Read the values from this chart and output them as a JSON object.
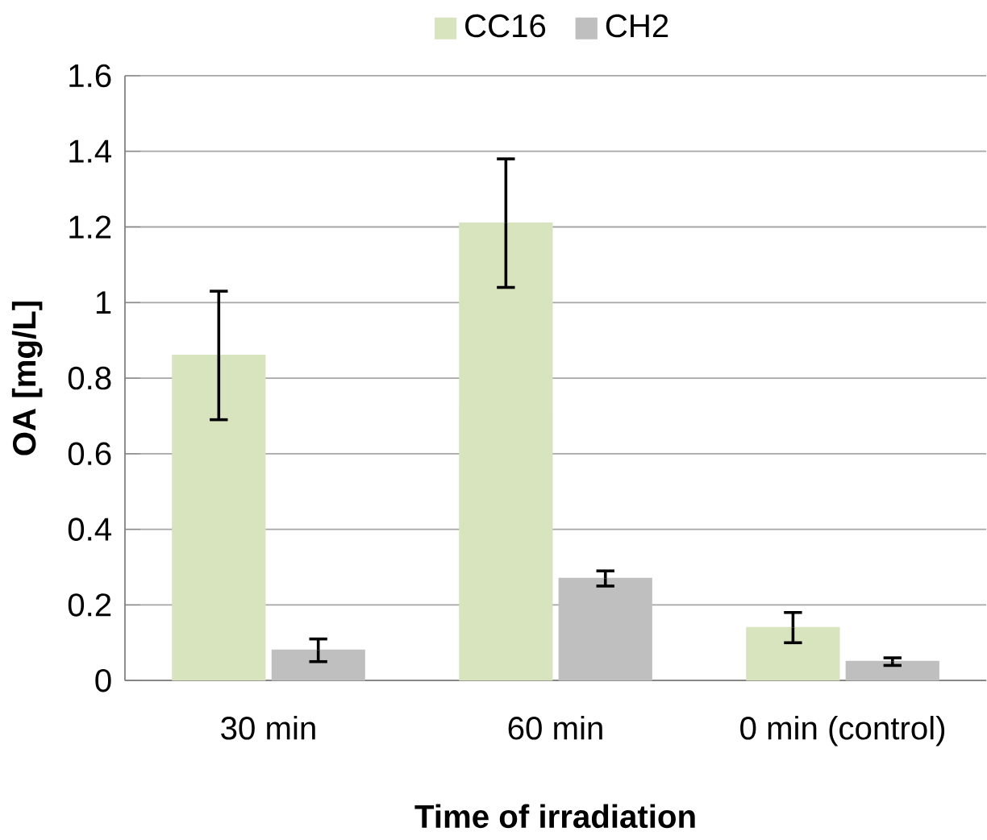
{
  "chart_data": {
    "type": "bar",
    "xlabel": "Time of irradiation",
    "ylabel": "OA [mg/L]",
    "categories": [
      "30 min",
      "60 min",
      "0 min (control)"
    ],
    "series": [
      {
        "name": "CC16",
        "color": "#d7e4bd",
        "values": [
          0.86,
          1.21,
          0.14
        ],
        "errors": [
          0.17,
          0.17,
          0.04
        ]
      },
      {
        "name": "CH2",
        "color": "#bfbfbf",
        "values": [
          0.08,
          0.27,
          0.05
        ],
        "errors": [
          0.03,
          0.02,
          0.01
        ]
      }
    ],
    "ylim": [
      0,
      1.6
    ],
    "yticks": [
      0,
      0.2,
      0.4,
      0.6,
      0.8,
      1,
      1.2,
      1.4,
      1.6
    ],
    "grid": "y",
    "legend": "top"
  }
}
